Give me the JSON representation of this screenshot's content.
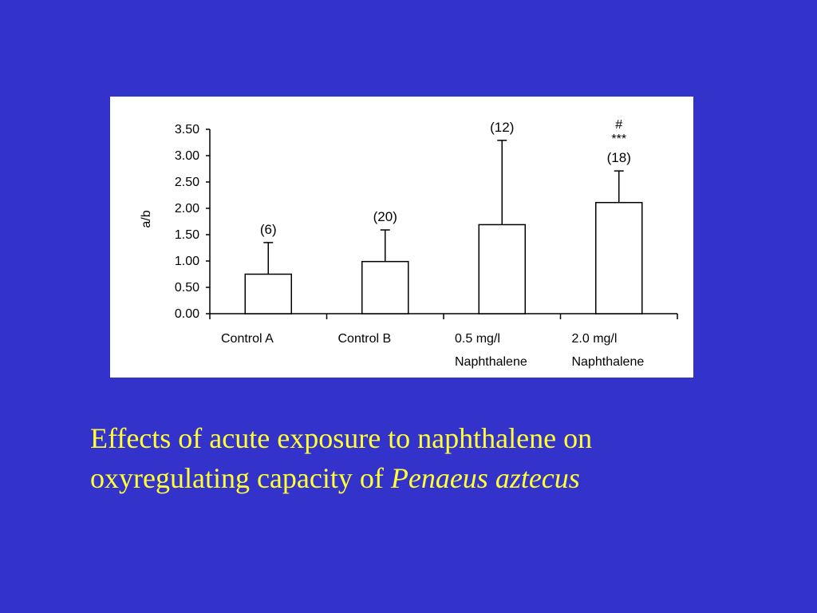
{
  "slide": {
    "background_color": "#3333CC",
    "caption_color": "#FFFF33",
    "caption_line1": "Effects of acute exposure to naphthalene on",
    "caption_line2_prefix": "oxyregulating capacity of ",
    "caption_line2_species": "Penaeus aztecus"
  },
  "chart_data": {
    "type": "bar",
    "title": "",
    "xlabel": "",
    "ylabel": "a/b",
    "ylim": [
      0,
      3.5
    ],
    "yticks": [
      "0.00",
      "0.50",
      "1.00",
      "1.50",
      "2.00",
      "2.50",
      "3.00",
      "3.50"
    ],
    "ytick_values": [
      0,
      0.5,
      1.0,
      1.5,
      2.0,
      2.5,
      3.0,
      3.5
    ],
    "categories": [
      [
        "Control A"
      ],
      [
        "Control B"
      ],
      [
        "0.5 mg/l",
        "Naphthalene"
      ],
      [
        "2.0 mg/l",
        "Naphthalene"
      ]
    ],
    "values": [
      0.75,
      0.99,
      1.69,
      2.11
    ],
    "error_upper": [
      1.35,
      1.59,
      3.29,
      2.71
    ],
    "sample_sizes": [
      "(6)",
      "(20)",
      "(12)",
      "(18)"
    ],
    "significance_labels": [
      "",
      "",
      "",
      "#\n***"
    ],
    "bar_fill": "#FFFFFF",
    "bar_stroke": "#000000",
    "grid": false
  }
}
